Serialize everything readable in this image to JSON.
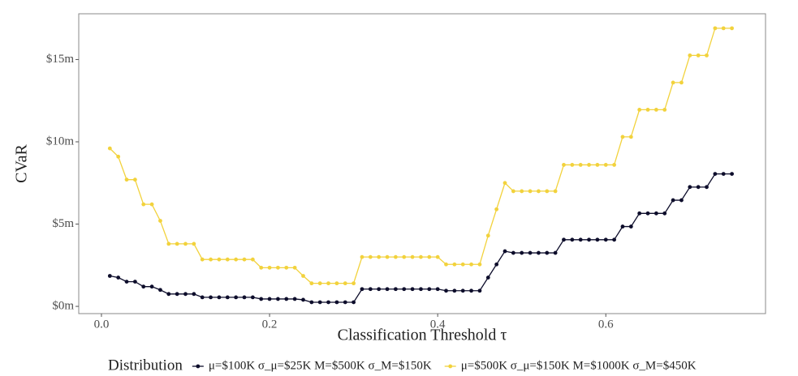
{
  "chart_data": {
    "type": "line",
    "x_label": "Classification Threshold τ",
    "y_label": "CVaR",
    "legend_title": "Distribution",
    "legend_position": "bottom",
    "xlim": [
      -0.027,
      0.79
    ],
    "ylim": [
      -0.44,
      17.78
    ],
    "xticks": [
      {
        "value": 0,
        "label": "0.0"
      },
      0.2,
      0.4,
      0.6
    ],
    "yticks": [
      {
        "value": 0,
        "label": "$0m"
      },
      {
        "value": 5,
        "label": "$5m"
      },
      {
        "value": 10,
        "label": "$10m"
      },
      {
        "value": 15,
        "label": "$15m"
      }
    ],
    "x": [
      0.01,
      0.02,
      0.03,
      0.04,
      0.05,
      0.06,
      0.07,
      0.08,
      0.09,
      0.1,
      0.11,
      0.12,
      0.13,
      0.14,
      0.15,
      0.16,
      0.17,
      0.18,
      0.19,
      0.2,
      0.21,
      0.22,
      0.23,
      0.24,
      0.25,
      0.26,
      0.27,
      0.28,
      0.29,
      0.3,
      0.31,
      0.32,
      0.33,
      0.34,
      0.35,
      0.36,
      0.37,
      0.38,
      0.39,
      0.4,
      0.41,
      0.42,
      0.43,
      0.44,
      0.45,
      0.46,
      0.47,
      0.48,
      0.49,
      0.5,
      0.51,
      0.52,
      0.53,
      0.54,
      0.55,
      0.56,
      0.57,
      0.58,
      0.59,
      0.6,
      0.61,
      0.62,
      0.63,
      0.64,
      0.65,
      0.66,
      0.67,
      0.68,
      0.69,
      0.7,
      0.71,
      0.72,
      0.73,
      0.74,
      0.75
    ],
    "series": [
      {
        "name": "μ=$100K σ_μ=$25K M=$500K σ_M=$150K",
        "color": "#0d0d2b",
        "values": [
          1.85,
          1.75,
          1.5,
          1.5,
          1.2,
          1.2,
          1.0,
          0.75,
          0.75,
          0.75,
          0.75,
          0.55,
          0.55,
          0.55,
          0.55,
          0.55,
          0.55,
          0.55,
          0.45,
          0.45,
          0.45,
          0.45,
          0.45,
          0.4,
          0.25,
          0.25,
          0.25,
          0.25,
          0.25,
          0.25,
          1.05,
          1.05,
          1.05,
          1.05,
          1.05,
          1.05,
          1.05,
          1.05,
          1.05,
          1.05,
          0.95,
          0.95,
          0.95,
          0.95,
          0.95,
          1.75,
          2.55,
          3.35,
          3.25,
          3.25,
          3.25,
          3.25,
          3.25,
          3.25,
          4.05,
          4.05,
          4.05,
          4.05,
          4.05,
          4.05,
          4.05,
          4.85,
          4.85,
          5.65,
          5.65,
          5.65,
          5.65,
          6.45,
          6.45,
          7.25,
          7.25,
          7.25,
          8.05,
          8.05,
          8.05
        ]
      },
      {
        "name": "μ=$500K σ_μ=$150K M=$1000K σ_M=$450K",
        "color": "#f2d23c",
        "values": [
          9.6,
          9.1,
          7.7,
          7.7,
          6.2,
          6.2,
          5.2,
          3.8,
          3.8,
          3.8,
          3.8,
          2.85,
          2.85,
          2.85,
          2.85,
          2.85,
          2.85,
          2.85,
          2.35,
          2.35,
          2.35,
          2.35,
          2.35,
          1.85,
          1.4,
          1.4,
          1.4,
          1.4,
          1.4,
          1.4,
          3.0,
          3.0,
          3.0,
          3.0,
          3.0,
          3.0,
          3.0,
          3.0,
          3.0,
          3.0,
          2.55,
          2.55,
          2.55,
          2.55,
          2.55,
          4.3,
          5.9,
          7.5,
          7.0,
          7.0,
          7.0,
          7.0,
          7.0,
          7.0,
          8.6,
          8.6,
          8.6,
          8.6,
          8.6,
          8.6,
          8.6,
          10.3,
          10.3,
          11.95,
          11.95,
          11.95,
          11.95,
          13.6,
          13.6,
          15.25,
          15.25,
          15.25,
          16.9,
          16.9,
          16.9
        ]
      }
    ]
  }
}
